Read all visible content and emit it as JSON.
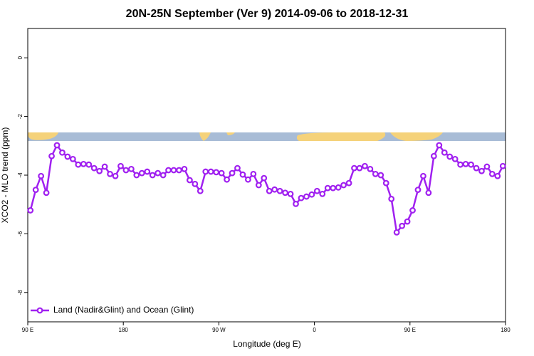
{
  "chart_data": {
    "type": "line",
    "title": "20N-25N September (Ver 9)   2014-09-06 to 2018-12-31",
    "xlabel": "Longitude (deg E)",
    "ylabel": "XCO2 - MLO trend (ppm)",
    "x": [
      92.5,
      97.5,
      102.5,
      107.5,
      112.5,
      117.5,
      122.5,
      127.5,
      132.5,
      137.5,
      142.5,
      147.5,
      152.5,
      157.5,
      162.5,
      167.5,
      172.5,
      177.5,
      182.5,
      187.5,
      192.5,
      197.5,
      202.5,
      207.5,
      212.5,
      217.5,
      222.5,
      227.5,
      232.5,
      237.5,
      242.5,
      247.5,
      252.5,
      257.5,
      262.5,
      267.5,
      272.5,
      277.5,
      282.5,
      287.5,
      292.5,
      297.5,
      302.5,
      307.5,
      312.5,
      317.5,
      322.5,
      327.5,
      332.5,
      337.5,
      342.5,
      347.5,
      352.5,
      357.5,
      362.5,
      367.5,
      372.5,
      377.5,
      382.5,
      387.5,
      392.5,
      397.5,
      402.5,
      407.5,
      412.5,
      417.5,
      422.5,
      427.5,
      432.5,
      437.5,
      442.5,
      447.5,
      452.5,
      457.5,
      462.5,
      467.5,
      472.5,
      477.5,
      482.5,
      487.5,
      492.5,
      497.5,
      502.5,
      507.5,
      512.5,
      517.5,
      522.5,
      527.5,
      532.5,
      537.5
    ],
    "series": [
      {
        "name": "Land (Nadir&Glint) and Ocean (Glint)",
        "color": "#a020f0",
        "values": [
          -5.2,
          -4.5,
          -4.03,
          -4.6,
          -3.35,
          -2.98,
          -3.23,
          -3.37,
          -3.45,
          -3.64,
          -3.62,
          -3.64,
          -3.76,
          -3.86,
          -3.71,
          -3.96,
          -4.03,
          -3.69,
          -3.83,
          -3.79,
          -4.0,
          -3.93,
          -3.88,
          -4.0,
          -3.93,
          -4.0,
          -3.83,
          -3.83,
          -3.83,
          -3.79,
          -4.17,
          -4.3,
          -4.54,
          -3.88,
          -3.88,
          -3.9,
          -3.93,
          -4.15,
          -3.93,
          -3.76,
          -3.98,
          -4.15,
          -3.96,
          -4.34,
          -4.1,
          -4.54,
          -4.49,
          -4.54,
          -4.6,
          -4.64,
          -4.98,
          -4.78,
          -4.73,
          -4.66,
          -4.54,
          -4.64,
          -4.44,
          -4.44,
          -4.42,
          -4.34,
          -4.27,
          -3.76,
          -3.76,
          -3.69,
          -3.79,
          -3.96,
          -4.0,
          -4.27,
          -4.81,
          -5.95,
          -5.73,
          -5.58,
          -5.2,
          -4.5,
          -4.03,
          -4.6,
          -3.35,
          -2.98,
          -3.23,
          -3.37,
          -3.45,
          -3.64,
          -3.62,
          -3.64,
          -3.76,
          -3.86,
          -3.71,
          -3.96,
          -4.03,
          -3.69
        ]
      }
    ],
    "xlim": [
      90,
      540
    ],
    "xticks": [
      {
        "value": 90,
        "label": "90 E"
      },
      180,
      {
        "value": 270,
        "label": "90 W"
      },
      {
        "value": 360,
        "label": "0"
      },
      {
        "value": 450,
        "label": "90 E"
      },
      {
        "value": 540,
        "label": "180"
      }
    ],
    "ylim": [
      -9,
      1
    ],
    "yticks": [
      -8,
      -6,
      -4,
      -2,
      0
    ],
    "legend": "bottom-left"
  }
}
